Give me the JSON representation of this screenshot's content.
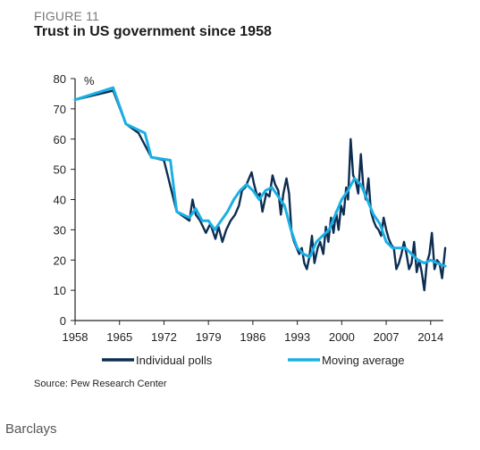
{
  "figure_label": "FIGURE 11",
  "source": "Source: Pew Research Center",
  "credit": "Barclays",
  "colors": {
    "individual": "#0d2d52",
    "moving": "#1ab0e6",
    "axis": "#222222"
  },
  "chart_data": {
    "type": "line",
    "title": "Trust in US government since 1958",
    "ylabel": "%",
    "xlabel": "",
    "xlim": [
      1958,
      2016
    ],
    "ylim": [
      0,
      80
    ],
    "x_ticks": [
      1958,
      1965,
      1972,
      1979,
      1986,
      1993,
      2000,
      2007,
      2014
    ],
    "y_ticks": [
      0,
      10,
      20,
      30,
      40,
      50,
      60,
      70,
      80
    ],
    "grid": false,
    "legend": "bottom",
    "series": [
      {
        "name": "Individual polls",
        "color": "#0d2d52",
        "points": [
          [
            1958,
            73
          ],
          [
            1964,
            76
          ],
          [
            1966,
            65
          ],
          [
            1968,
            62
          ],
          [
            1970,
            54
          ],
          [
            1972,
            53
          ],
          [
            1974,
            36
          ],
          [
            1976,
            33
          ],
          [
            1976.5,
            40
          ],
          [
            1977,
            35
          ],
          [
            1977.7,
            33
          ],
          [
            1978.6,
            29
          ],
          [
            1979.3,
            32
          ],
          [
            1980.1,
            27
          ],
          [
            1980.6,
            31
          ],
          [
            1981.2,
            26
          ],
          [
            1981.8,
            30
          ],
          [
            1982.5,
            33
          ],
          [
            1983.2,
            35
          ],
          [
            1983.8,
            38
          ],
          [
            1984.3,
            43
          ],
          [
            1984.8,
            44
          ],
          [
            1985.4,
            47
          ],
          [
            1985.8,
            49
          ],
          [
            1986.2,
            45
          ],
          [
            1986.7,
            41
          ],
          [
            1987.1,
            42
          ],
          [
            1987.5,
            36
          ],
          [
            1988.1,
            42
          ],
          [
            1988.6,
            41
          ],
          [
            1989.1,
            48
          ],
          [
            1989.5,
            45
          ],
          [
            1990,
            43
          ],
          [
            1990.4,
            35
          ],
          [
            1990.8,
            42
          ],
          [
            1991.3,
            47
          ],
          [
            1991.7,
            42
          ],
          [
            1992.1,
            29
          ],
          [
            1992.5,
            26
          ],
          [
            1992.9,
            24
          ],
          [
            1993.3,
            22
          ],
          [
            1993.7,
            24
          ],
          [
            1994.1,
            19
          ],
          [
            1994.5,
            17
          ],
          [
            1994.9,
            21
          ],
          [
            1995.3,
            28
          ],
          [
            1995.7,
            19
          ],
          [
            1996.2,
            24
          ],
          [
            1996.6,
            26
          ],
          [
            1997.1,
            22
          ],
          [
            1997.5,
            31
          ],
          [
            1997.9,
            26
          ],
          [
            1998.3,
            34
          ],
          [
            1998.7,
            29
          ],
          [
            1999.1,
            36
          ],
          [
            1999.5,
            30
          ],
          [
            1999.9,
            38
          ],
          [
            2000.3,
            35
          ],
          [
            2000.7,
            44
          ],
          [
            2001,
            40
          ],
          [
            2001.4,
            60
          ],
          [
            2001.8,
            48
          ],
          [
            2002.2,
            46
          ],
          [
            2002.6,
            42
          ],
          [
            2003,
            55
          ],
          [
            2003.4,
            44
          ],
          [
            2003.8,
            40
          ],
          [
            2004.2,
            47
          ],
          [
            2004.6,
            36
          ],
          [
            2005,
            33
          ],
          [
            2005.4,
            31
          ],
          [
            2005.8,
            30
          ],
          [
            2006.2,
            28
          ],
          [
            2006.6,
            34
          ],
          [
            2007,
            30
          ],
          [
            2007.4,
            27
          ],
          [
            2007.8,
            25
          ],
          [
            2008.2,
            24
          ],
          [
            2008.6,
            17
          ],
          [
            2009,
            19
          ],
          [
            2009.4,
            22
          ],
          [
            2009.8,
            26
          ],
          [
            2010.2,
            22
          ],
          [
            2010.6,
            17
          ],
          [
            2011,
            19
          ],
          [
            2011.4,
            26
          ],
          [
            2011.8,
            16
          ],
          [
            2012.2,
            20
          ],
          [
            2012.6,
            16
          ],
          [
            2013,
            10
          ],
          [
            2013.4,
            19
          ],
          [
            2013.8,
            22
          ],
          [
            2014.2,
            29
          ],
          [
            2014.6,
            17
          ],
          [
            2015,
            20
          ],
          [
            2015.4,
            19
          ],
          [
            2015.8,
            14
          ],
          [
            2016.3,
            24
          ]
        ]
      },
      {
        "name": "Moving average",
        "color": "#1ab0e6",
        "points": [
          [
            1958,
            73
          ],
          [
            1964,
            77
          ],
          [
            1966,
            65
          ],
          [
            1969,
            62
          ],
          [
            1970,
            54
          ],
          [
            1973,
            53
          ],
          [
            1974,
            36
          ],
          [
            1976,
            34
          ],
          [
            1977,
            37
          ],
          [
            1978,
            33
          ],
          [
            1979,
            33
          ],
          [
            1980,
            30
          ],
          [
            1981,
            33
          ],
          [
            1982,
            36
          ],
          [
            1983,
            40
          ],
          [
            1984,
            43
          ],
          [
            1985,
            45
          ],
          [
            1986,
            43
          ],
          [
            1987,
            40
          ],
          [
            1988,
            43
          ],
          [
            1989,
            44
          ],
          [
            1990,
            41
          ],
          [
            1991,
            38
          ],
          [
            1992,
            30
          ],
          [
            1993,
            24
          ],
          [
            1994,
            22
          ],
          [
            1995,
            21
          ],
          [
            1996,
            26
          ],
          [
            1997,
            28
          ],
          [
            1998,
            30
          ],
          [
            1999,
            35
          ],
          [
            2000,
            40
          ],
          [
            2001,
            43
          ],
          [
            2002,
            47
          ],
          [
            2003,
            45
          ],
          [
            2004,
            40
          ],
          [
            2005,
            35
          ],
          [
            2006,
            32
          ],
          [
            2007,
            26
          ],
          [
            2008,
            24
          ],
          [
            2009,
            24
          ],
          [
            2010,
            24
          ],
          [
            2011,
            22
          ],
          [
            2012,
            20
          ],
          [
            2013,
            19
          ],
          [
            2014,
            20
          ],
          [
            2015,
            19
          ],
          [
            2016.3,
            18
          ]
        ]
      }
    ]
  }
}
